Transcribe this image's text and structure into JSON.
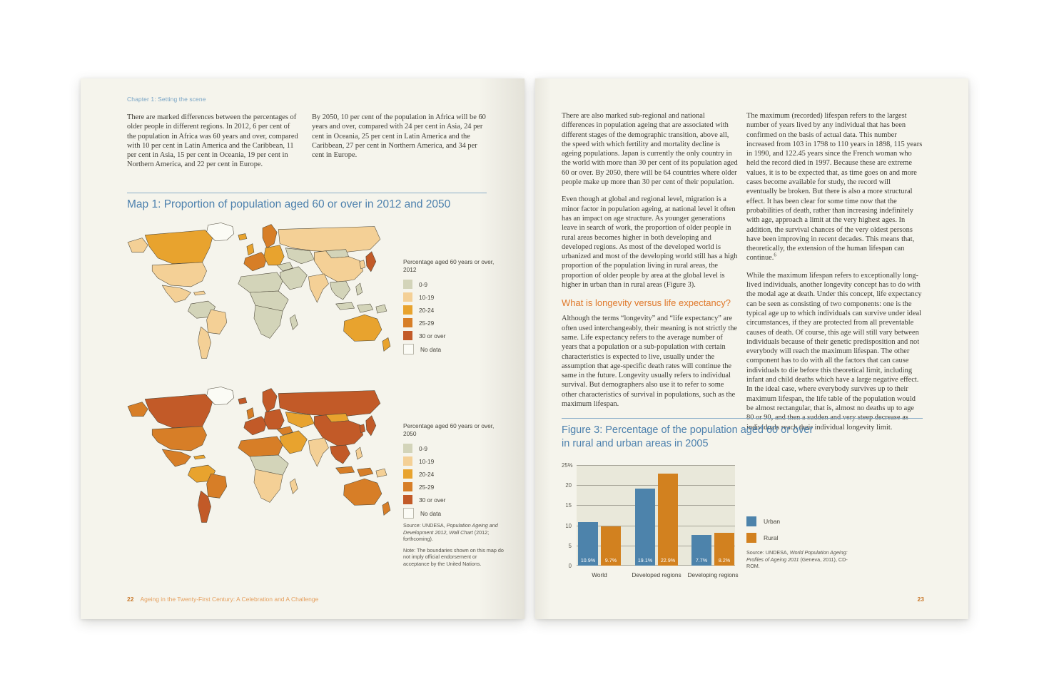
{
  "left_page": {
    "chapter_label": "Chapter 1: Setting the scene",
    "intro_col1": "There are marked differences between the percentages of older people in different regions. In 2012, 6 per cent of the population in Africa was 60 years and over, compared with 10 per cent in Latin America and the Caribbean, 11 per cent in Asia, 15 per cent in Oceania, 19 per cent in Northern America, and 22 per cent in Europe.",
    "intro_col2": "By 2050, 10 per cent of the population in Africa will be 60 years and over, compared with 24 per cent in Asia, 24 per cent in Oceania, 25 per cent in Latin America and the Caribbean, 27 per cent in Northern America, and 34 per cent in Europe.",
    "map_title": "Map 1: Proportion of population aged 60 or over in 2012 and 2050",
    "legend_2012_title": "Percentage aged 60 years or over, 2012",
    "legend_2050_title": "Percentage aged 60 years or over, 2050",
    "legend_items": [
      {
        "label": "0-9",
        "color_key": "c0"
      },
      {
        "label": "10-19",
        "color_key": "c10"
      },
      {
        "label": "20-24",
        "color_key": "c20"
      },
      {
        "label": "25-29",
        "color_key": "c25"
      },
      {
        "label": "30 or over",
        "color_key": "c30"
      },
      {
        "label": "No data",
        "color_key": "nodata"
      }
    ],
    "source_prefix": "Source: UNDESA, ",
    "source_italic": "Population Ageing and Development 2012, Wall Chart",
    "source_suffix": " (2012; forthcoming).",
    "note": "Note: The boundaries shown on this map do not imply official endorsement or acceptance by the United Nations.",
    "footer_number": "22",
    "footer_text": "Ageing in the Twenty-First Century: A Celebration and A Challenge"
  },
  "right_page": {
    "col1_para1": "There are also marked sub-regional and national differences in population ageing that are associated with different stages of the demographic transition, above all, the speed with which fertility and mortality decline is ageing populations. Japan is currently the only country in the world with more than 30 per cent of its population aged 60 or over. By 2050, there will be 64 countries where older people make up more than 30 per cent of their population.",
    "col1_para2": "Even though at global and regional level, migration is a minor factor in population ageing, at national level it often has an impact on age structure. As younger generations leave in search of work, the proportion of older people in rural areas becomes higher in both developing and developed regions. As most of the developed world is urbanized and most of the developing world still has a high proportion of the population living in rural areas, the proportion of older people by area at the global level is higher in urban than in rural areas (Figure 3).",
    "subheading": "What is longevity versus life expectancy?",
    "col1_para3": "Although the terms “longevity” and “life expectancy” are often used interchangeably, their meaning is not strictly the same. Life expectancy refers to the average number of years that a population or a sub-population with certain characteristics is expected to live, usually under the assumption that age-specific death rates will continue the same in the future. Longevity usually refers to individual survival. But demographers also use it to refer to some other characteristics of survival in populations, such as the maximum lifespan.",
    "col2_para1": "The maximum (recorded) lifespan refers to the largest number of years lived by any individual that has been confirmed on the basis of actual data. This number increased from 103 in 1798 to 110 years in 1898, 115 years in 1990, and 122.45 years since the French woman who held the record died in 1997. Because these are extreme values, it is to be expected that, as time goes on and more cases become available for study, the record will eventually be broken. But there is also a more structural effect. It has been clear for some time now that the probabilities of death, rather than increasing indefinitely with age, approach a limit at the very highest ages. In addition, the survival chances of the very oldest persons have been improving in recent decades. This means that, theoretically, the extension of the human lifespan can continue.",
    "col2_footnote": "6",
    "col2_para2": "While the maximum lifespan refers to exceptionally long-lived individuals, another longevity concept has to do with the modal age at death. Under this concept, life expectancy can be seen as consisting of two components: one is the typical age up to which individuals can survive under ideal circumstances, if they are protected from all preventable causes of death. Of course, this age will still vary between individuals because of their genetic predisposition and not everybody will reach the maximum lifespan. The other component has to do with all the factors that can cause individuals to die before this theoretical limit, including infant and child deaths which have a large negative effect. In the ideal case, where everybody survives up to their maximum lifespan, the life table of the population would be almost rectangular, that is, almost no deaths up to age 80 or 90, and then a sudden and very steep decrease as individuals reach their individual longevity limit.",
    "figure_title_line1": "Figure 3: Percentage of the population aged 60 or over",
    "figure_title_line2": "in rural and urban areas in 2005",
    "figure_source_prefix": "Source: UNDESA, ",
    "figure_source_italic": "World Population Ageing: Profiles of Ageing 2011",
    "figure_source_suffix": " (Geneva, 2011), CD-ROM.",
    "footer_number": "23"
  },
  "chart_data": {
    "type": "bar",
    "title": "Figure 3: Percentage of the population aged 60 or over in rural and urban areas in 2005",
    "categories": [
      "World",
      "Developed regions",
      "Developing regions"
    ],
    "series": [
      {
        "name": "Urban",
        "color": "#4d83ab",
        "values": [
          10.9,
          19.1,
          7.7
        ]
      },
      {
        "name": "Rural",
        "color": "#d2811f",
        "values": [
          9.7,
          22.9,
          8.2
        ]
      }
    ],
    "bar_value_labels": [
      [
        "10.9%",
        "9.7%"
      ],
      [
        "19.1%",
        "22.9%"
      ],
      [
        "7.7%",
        "8.2%"
      ]
    ],
    "y_ticks": [
      0,
      5,
      10,
      15,
      20,
      25
    ],
    "y_tick_labels": [
      "0",
      "5",
      "10",
      "15",
      "20",
      "25%"
    ],
    "ylim": [
      0,
      25
    ],
    "grid": true,
    "legend": [
      "Urban",
      "Rural"
    ],
    "legend_position": "right",
    "plot_bg": "#e9e8da"
  },
  "map_legend_colors": {
    "c0": "#d3d4b9",
    "c10": "#f4d096",
    "c20": "#e8a32e",
    "c25": "#d77e27",
    "c30": "#c25a28",
    "nodata": "#fbfbf5"
  },
  "maps": {
    "y2012": {
      "greenland": "nodata",
      "alaska": "c10",
      "canada": "c20",
      "usa": "c10",
      "mexico": "c10",
      "carib": "c10",
      "sa_north": "c0",
      "sa_brazil": "c10",
      "sa_south": "c10",
      "iceland": "c20",
      "uk": "c20",
      "scandinavia": "c25",
      "w_europe": "c25",
      "e_europe": "c20",
      "russia": "c10",
      "centralasia": "c0",
      "mongolia": "c0",
      "china": "c10",
      "turkey": "c0",
      "middle_east": "c0",
      "n_africa": "c0",
      "c_africa": "c0",
      "s_africa": "c0",
      "madagascar": "c0",
      "india": "c10",
      "seasia": "c0",
      "philippines": "c0",
      "indonesia": "c0",
      "borneo": "c0",
      "png": "c0",
      "japan": "c30",
      "korea": "c10",
      "australia": "c20",
      "nz": "c20"
    },
    "y2050": {
      "greenland": "nodata",
      "alaska": "c25",
      "canada": "c30",
      "usa": "c25",
      "mexico": "c25",
      "carib": "c20",
      "sa_north": "c20",
      "sa_brazil": "c25",
      "sa_south": "c30",
      "iceland": "c30",
      "uk": "c25",
      "scandinavia": "c30",
      "w_europe": "c30",
      "e_europe": "c30",
      "russia": "c30",
      "centralasia": "c20",
      "mongolia": "c20",
      "china": "c30",
      "turkey": "c25",
      "middle_east": "c20",
      "n_africa": "c25",
      "c_africa": "c0",
      "s_africa": "c10",
      "madagascar": "c10",
      "india": "c10",
      "seasia": "c30",
      "philippines": "c10",
      "indonesia": "c25",
      "borneo": "c25",
      "png": "c10",
      "japan": "c30",
      "korea": "c30",
      "australia": "c25",
      "nz": "c25"
    }
  }
}
